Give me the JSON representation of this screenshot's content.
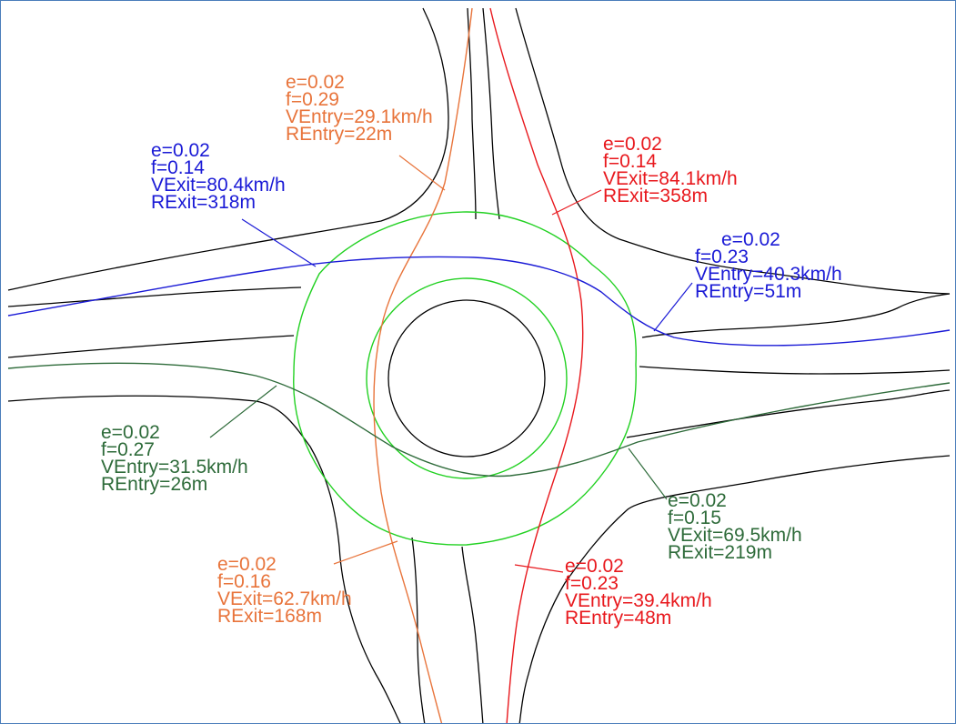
{
  "colors": {
    "orange": "#e8743b",
    "red": "#e8181d",
    "blue": "#1a1ad6",
    "darkgreen": "#2e6b3a",
    "lightgreen": "#22d122",
    "road": "#000000",
    "frame": "#4a7ebb"
  },
  "labels": {
    "orange_entry": {
      "e": "e=0.02",
      "f": "f=0.29",
      "v": "VEntry=29.1km/h",
      "r": "REntry=22m"
    },
    "red_exit": {
      "e": "e=0.02",
      "f": "f=0.14",
      "v": "VExit=84.1km/h",
      "r": "RExit=358m"
    },
    "blue_exit": {
      "e": "e=0.02",
      "f": "f=0.14",
      "v": "VExit=80.4km/h",
      "r": "RExit=318m"
    },
    "blue_entry": {
      "e": "e=0.02",
      "f": "f=0.23",
      "v": "VEntry=40.3km/h",
      "r": "REntry=51m"
    },
    "green_entry": {
      "e": "e=0.02",
      "f": "f=0.27",
      "v": "VEntry=31.5km/h",
      "r": "REntry=26m"
    },
    "green_exit": {
      "e": "e=0.02",
      "f": "f=0.15",
      "v": "VExit=69.5km/h",
      "r": "RExit=219m"
    },
    "orange_exit": {
      "e": "e=0.02",
      "f": "f=0.16",
      "v": "VExit=62.7km/h",
      "r": "RExit=168m"
    },
    "red_entry": {
      "e": "e=0.02",
      "f": "f=0.23",
      "v": "VEntry=39.4km/h",
      "r": "REntry=48m"
    }
  }
}
